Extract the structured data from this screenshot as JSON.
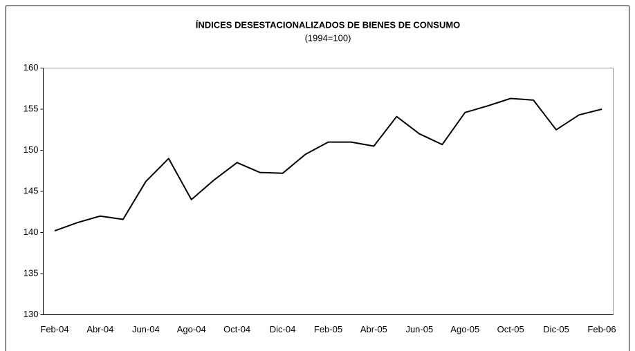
{
  "chart_data": {
    "type": "line",
    "title": "ÍNDICES DESESTACIONALIZADOS DE BIENES DE CONSUMO",
    "subtitle": "(1994=100)",
    "categories": [
      "Feb-04",
      null,
      "Abr-04",
      null,
      "Jun-04",
      null,
      "Ago-04",
      null,
      "Oct-04",
      null,
      "Dic-04",
      null,
      "Feb-05",
      null,
      "Abr-05",
      null,
      "Jun-05",
      null,
      "Ago-05",
      null,
      "Oct-05",
      null,
      "Dic-05",
      null,
      "Feb-06"
    ],
    "values": [
      140.2,
      141.2,
      142.0,
      141.6,
      146.2,
      149.0,
      144.0,
      146.4,
      148.5,
      147.3,
      147.2,
      149.5,
      151.0,
      151.0,
      150.5,
      154.1,
      152.0,
      150.7,
      154.6,
      155.4,
      156.3,
      156.1,
      152.5,
      154.3,
      155.0
    ],
    "color": "#000000",
    "ylim": [
      130,
      160
    ],
    "yticks": [
      130,
      135,
      140,
      145,
      150,
      155,
      160
    ],
    "grid": false
  }
}
